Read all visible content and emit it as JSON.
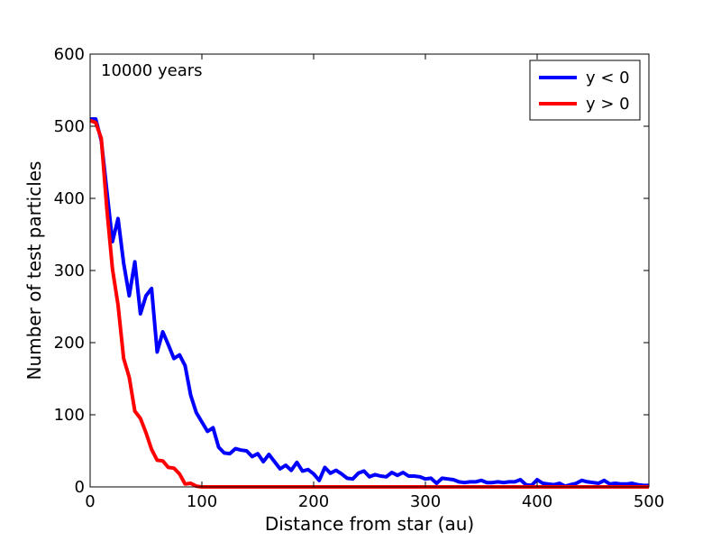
{
  "chart_data": {
    "type": "line",
    "title": "",
    "annotation": "10000 years",
    "xlabel": "Distance from star (au)",
    "ylabel": "Number of test particles",
    "xlim": [
      0,
      500
    ],
    "ylim": [
      0,
      600
    ],
    "xticks": [
      0,
      100,
      200,
      300,
      400,
      500
    ],
    "yticks": [
      0,
      100,
      200,
      300,
      400,
      500,
      600
    ],
    "xtick_labels": [
      "0",
      "100",
      "200",
      "300",
      "400",
      "500"
    ],
    "ytick_labels": [
      "0",
      "100",
      "200",
      "300",
      "400",
      "500",
      "600"
    ],
    "grid": false,
    "legend_position": "top-right",
    "series": [
      {
        "name": "y < 0",
        "color": "#0000ff",
        "x": [
          0,
          5,
          10,
          15,
          20,
          25,
          30,
          35,
          40,
          45,
          50,
          55,
          60,
          65,
          70,
          75,
          80,
          85,
          90,
          95,
          100,
          105,
          110,
          115,
          120,
          125,
          130,
          135,
          140,
          145,
          150,
          155,
          160,
          165,
          170,
          175,
          180,
          185,
          190,
          195,
          200,
          205,
          210,
          215,
          220,
          225,
          230,
          235,
          240,
          245,
          250,
          255,
          260,
          265,
          270,
          275,
          280,
          285,
          290,
          295,
          300,
          305,
          310,
          315,
          320,
          325,
          330,
          335,
          340,
          345,
          350,
          355,
          360,
          365,
          370,
          375,
          380,
          385,
          390,
          395,
          400,
          405,
          410,
          415,
          420,
          425,
          430,
          435,
          440,
          445,
          450,
          455,
          460,
          465,
          470,
          475,
          480,
          485,
          490,
          495,
          500
        ],
        "values": [
          510,
          510,
          480,
          410,
          340,
          372,
          310,
          265,
          312,
          240,
          265,
          275,
          187,
          215,
          197,
          178,
          183,
          168,
          127,
          103,
          90,
          77,
          82,
          55,
          47,
          46,
          53,
          51,
          50,
          42,
          46,
          35,
          45,
          35,
          25,
          30,
          23,
          34,
          22,
          24,
          18,
          9,
          27,
          19,
          23,
          18,
          12,
          11,
          19,
          22,
          14,
          17,
          15,
          14,
          20,
          16,
          20,
          15,
          15,
          14,
          11,
          12,
          5,
          12,
          11,
          10,
          7,
          6,
          7,
          7,
          9,
          6,
          6,
          7,
          6,
          7,
          7,
          10,
          3,
          2,
          10,
          5,
          4,
          3,
          5,
          1,
          3,
          5,
          9,
          7,
          6,
          5,
          9,
          4,
          5,
          4,
          4,
          5,
          3,
          2,
          2
        ]
      },
      {
        "name": "y > 0",
        "color": "#ff0000",
        "x": [
          0,
          5,
          10,
          15,
          20,
          25,
          30,
          35,
          40,
          45,
          50,
          55,
          60,
          65,
          70,
          75,
          80,
          85,
          90,
          95,
          100,
          150,
          200,
          250,
          300,
          350,
          400,
          450,
          500
        ],
        "values": [
          508,
          505,
          483,
          385,
          302,
          252,
          178,
          152,
          105,
          95,
          75,
          52,
          37,
          36,
          27,
          26,
          18,
          4,
          5,
          1,
          0,
          0,
          0,
          0,
          0,
          0,
          0,
          0,
          0
        ]
      }
    ]
  }
}
